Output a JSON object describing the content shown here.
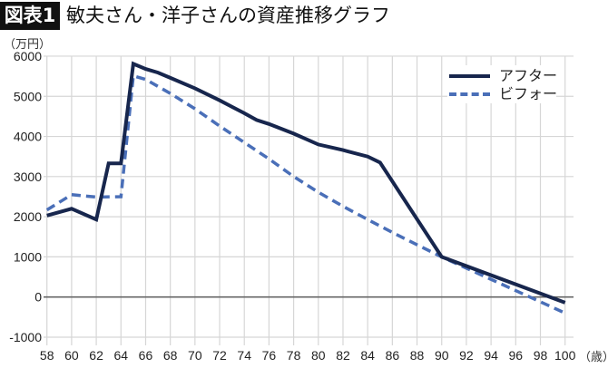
{
  "header": {
    "badge": "図表1",
    "title": "敏夫さん・洋子さんの資産推移グラフ"
  },
  "axes": {
    "y_unit": "（万円）",
    "x_unit": "（歳）"
  },
  "legend": {
    "after_label": "アフター",
    "before_label": "ビフォー"
  },
  "colors": {
    "after": "#17264d",
    "before": "#4a6fb8",
    "grid": "#d6d6d6",
    "zero_line": "#666666"
  },
  "chart_data": {
    "type": "line",
    "title": "敏夫さん・洋子さんの資産推移グラフ",
    "xlabel": "（歳）",
    "ylabel": "（万円）",
    "xlim": [
      58,
      100
    ],
    "ylim": [
      -1000,
      6000
    ],
    "x_ticks": [
      58,
      60,
      62,
      64,
      66,
      68,
      70,
      72,
      74,
      76,
      78,
      80,
      82,
      84,
      86,
      88,
      90,
      92,
      94,
      96,
      98,
      100
    ],
    "y_ticks": [
      -1000,
      0,
      1000,
      2000,
      3000,
      4000,
      5000,
      6000
    ],
    "grid": true,
    "legend_position": "upper right",
    "series": [
      {
        "name": "アフター",
        "style": "solid",
        "color": "#17264d",
        "x": [
          58,
          60,
          62,
          63,
          64,
          65,
          66,
          67,
          68,
          70,
          72,
          74,
          75,
          76,
          78,
          80,
          82,
          84,
          85,
          90,
          100
        ],
        "y": [
          2030,
          2200,
          1930,
          3330,
          3330,
          5810,
          5680,
          5590,
          5460,
          5200,
          4900,
          4580,
          4410,
          4310,
          4070,
          3800,
          3660,
          3500,
          3350,
          1000,
          -140
        ]
      },
      {
        "name": "ビフォー",
        "style": "dashed",
        "color": "#4a6fb8",
        "x": [
          58,
          60,
          62,
          64,
          65,
          66,
          68,
          70,
          72,
          74,
          76,
          78,
          80,
          82,
          84,
          86,
          88,
          90,
          100
        ],
        "y": [
          2170,
          2550,
          2490,
          2500,
          5510,
          5420,
          5070,
          4690,
          4260,
          3850,
          3440,
          3000,
          2610,
          2260,
          1930,
          1610,
          1300,
          1000,
          -400
        ]
      }
    ]
  }
}
